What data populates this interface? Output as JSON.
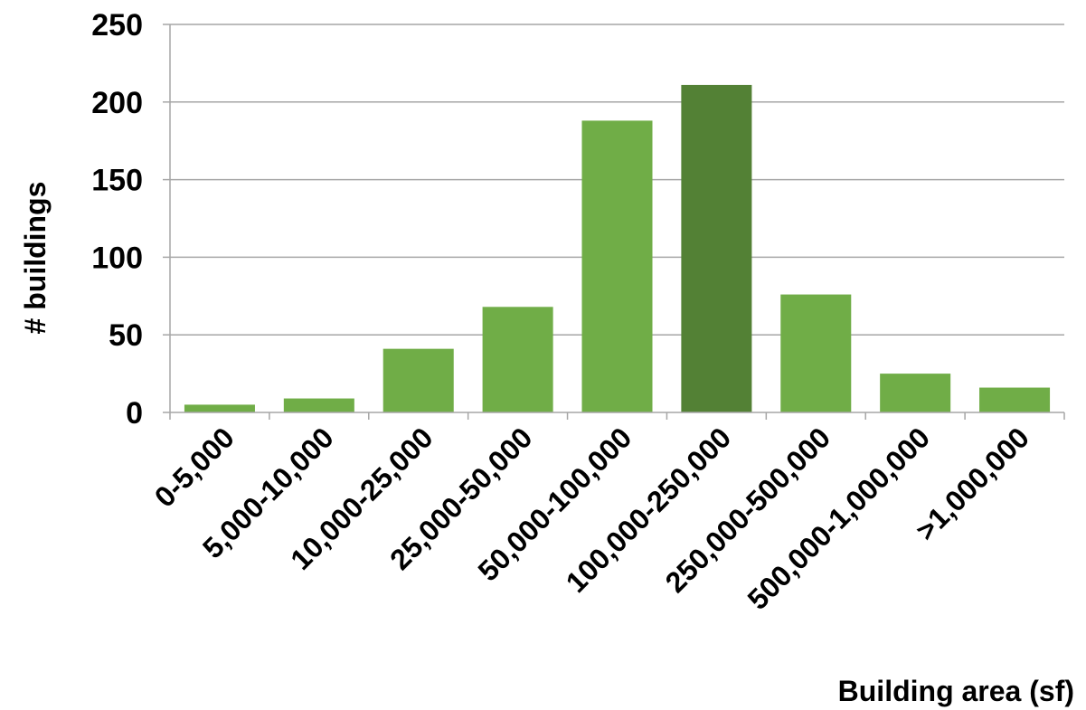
{
  "chart_data": {
    "type": "bar",
    "title": "",
    "xlabel": "Building area (sf)",
    "ylabel": "#  buildings",
    "categories": [
      "0-5,000",
      "5,000-10,000",
      "10,000-25,000",
      "25,000-50,000",
      "50,000-100,000",
      "100,000-250,000",
      "250,000-500,000",
      "500,000-1,000,000",
      ">1,000,000"
    ],
    "values": [
      5,
      9,
      41,
      68,
      188,
      211,
      76,
      25,
      16
    ],
    "ylim": [
      0,
      250
    ],
    "yticks": [
      "0",
      "50",
      "100",
      "150",
      "200",
      "250"
    ],
    "grid": true,
    "highlight_index": 5,
    "colors": {
      "bar": "#70ad47",
      "highlight": "#538135",
      "grid": "#a6a6a6",
      "axis": "#a6a6a6"
    }
  }
}
